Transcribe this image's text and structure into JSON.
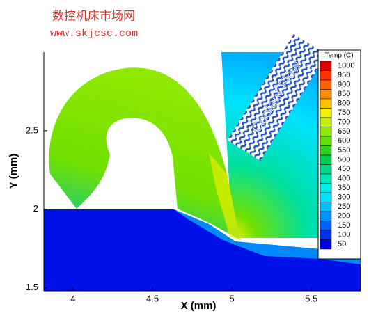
{
  "chart_data": {
    "type": "contour",
    "watermark_title": "数控机床市场网",
    "watermark_url": "www.skjcsc.com",
    "xlabel": "X (mm)",
    "ylabel": "Y (mm)",
    "xlim": [
      3.816,
      5.81
    ],
    "ylim": [
      1.48,
      3.0
    ],
    "xticks": [
      4,
      4.5,
      5,
      5.5
    ],
    "yticks": [
      1.5,
      2,
      2.5
    ],
    "annotation": "Coolant Flow",
    "colorbar": {
      "title": "Temp (C)",
      "levels": [
        1000,
        950,
        900,
        850,
        800,
        750,
        700,
        650,
        600,
        550,
        500,
        450,
        400,
        350,
        300,
        250,
        200,
        150,
        100,
        50
      ],
      "colors": [
        "#e00000",
        "#ff3000",
        "#ff6000",
        "#ff9000",
        "#ffc000",
        "#f0f000",
        "#c0f000",
        "#90e800",
        "#60e000",
        "#30d020",
        "#00c850",
        "#00d888",
        "#00e8b8",
        "#00f0e8",
        "#00e0ff",
        "#00c0ff",
        "#0090ff",
        "#0060ff",
        "#0030f0",
        "#0000e0"
      ]
    }
  }
}
